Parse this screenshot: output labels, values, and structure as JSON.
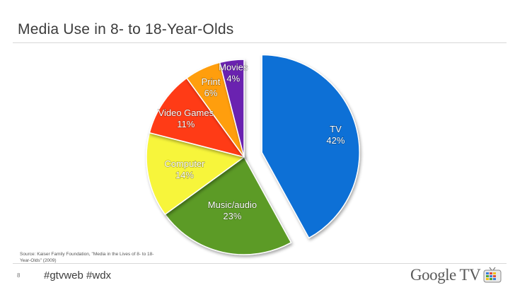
{
  "slide": {
    "title": "Media Use in 8- to 18-Year-Olds",
    "source": "Source: Kaiser Family Foundation, \"Media in the Lives of 8- to 18-Year-Olds\" (2009)",
    "page_number": "8",
    "hashtags": "#gtvweb #wdx",
    "brand": "Google TV",
    "brand_icon": "google-tv-icon"
  },
  "chart_data": {
    "type": "pie",
    "title": "Media Use in 8- to 18-Year-Olds",
    "exploded": "TV",
    "slices": [
      {
        "label": "TV",
        "percent_label": "42%",
        "value": 42,
        "color": "#0b6fd6"
      },
      {
        "label": "Music/audio",
        "percent_label": "23%",
        "value": 23,
        "color": "#5b9b27"
      },
      {
        "label": "Computer",
        "percent_label": "14%",
        "value": 14,
        "color": "#f7f53b"
      },
      {
        "label": "Video Games",
        "percent_label": "11%",
        "value": 11,
        "color": "#ff3b12"
      },
      {
        "label": "Print",
        "percent_label": "6%",
        "value": 6,
        "color": "#ff9e0c"
      },
      {
        "label": "Movies",
        "percent_label": "4%",
        "value": 4,
        "color": "#6a22b0"
      }
    ]
  }
}
